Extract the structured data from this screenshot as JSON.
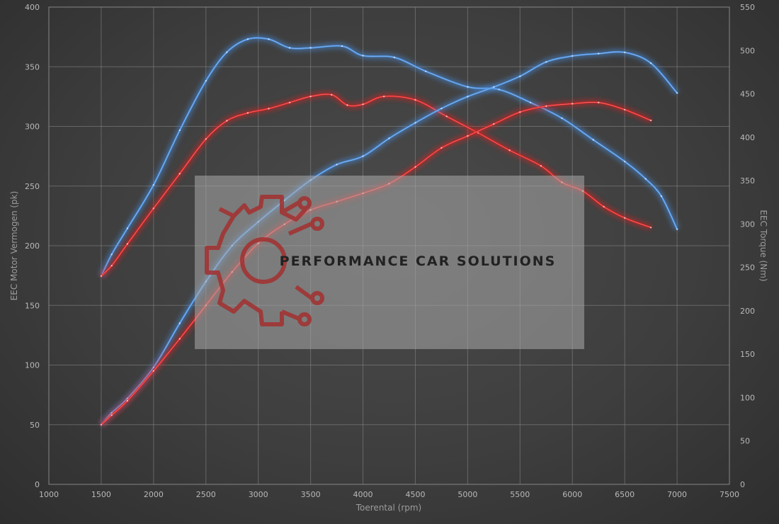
{
  "chart_data": {
    "type": "line",
    "xlabel": "Toerental (rpm)",
    "ylabel": "EEC Motor Vermogen (pk)",
    "y2label": "EEC Torque (Nm)",
    "xlim": [
      1000,
      7500
    ],
    "ylim": [
      0,
      400
    ],
    "y2lim": [
      0,
      550
    ],
    "x_ticks": [
      1000,
      1500,
      2000,
      2500,
      3000,
      3500,
      4000,
      4500,
      5000,
      5500,
      6000,
      6500,
      7000,
      7500
    ],
    "y_ticks": [
      0,
      50,
      100,
      150,
      200,
      250,
      300,
      350,
      400
    ],
    "y2_ticks": [
      0,
      50,
      100,
      150,
      200,
      250,
      300,
      350,
      400,
      450,
      500,
      550
    ],
    "grid": true,
    "series": [
      {
        "axis": "right",
        "color": "#4a90e2",
        "x": [
          1500,
          1600,
          1750,
          2000,
          2250,
          2500,
          2700,
          2900,
          3100,
          3300,
          3500,
          3800,
          4000,
          4300,
          4600,
          5000,
          5300,
          5600,
          5900,
          6200,
          6500,
          6700,
          6850,
          7000
        ],
        "values": [
          240,
          265,
          295,
          345,
          408,
          465,
          498,
          513,
          513,
          503,
          503,
          505,
          494,
          492,
          476,
          458,
          455,
          440,
          422,
          397,
          372,
          352,
          332,
          294
        ]
      },
      {
        "axis": "right",
        "color": "#e02424",
        "x": [
          1500,
          1600,
          1750,
          2000,
          2250,
          2500,
          2700,
          2900,
          3100,
          3300,
          3500,
          3700,
          3850,
          4000,
          4200,
          4500,
          4800,
          5100,
          5400,
          5700,
          5900,
          6100,
          6300,
          6500,
          6750
        ],
        "values": [
          240,
          252,
          277,
          318,
          358,
          398,
          419,
          428,
          433,
          440,
          447,
          449,
          437,
          438,
          447,
          443,
          424,
          405,
          385,
          367,
          348,
          338,
          320,
          307,
          296
        ]
      },
      {
        "axis": "left",
        "color": "#4a90e2",
        "x": [
          1500,
          1600,
          1750,
          2000,
          2250,
          2500,
          2750,
          3000,
          3250,
          3500,
          3750,
          4000,
          4250,
          4500,
          4750,
          5000,
          5250,
          5500,
          5750,
          6000,
          6250,
          6500,
          6750,
          7000
        ],
        "values": [
          50,
          60,
          72,
          98,
          135,
          170,
          200,
          220,
          238,
          255,
          268,
          275,
          290,
          303,
          315,
          325,
          333,
          342,
          354,
          359,
          361,
          362,
          353,
          328
        ]
      },
      {
        "axis": "left",
        "color": "#e02424",
        "x": [
          1500,
          1600,
          1750,
          2000,
          2250,
          2500,
          2750,
          3000,
          3250,
          3500,
          3750,
          4000,
          4250,
          4500,
          4750,
          5000,
          5250,
          5500,
          5750,
          6000,
          6250,
          6500,
          6750
        ],
        "values": [
          50,
          58,
          70,
          95,
          122,
          150,
          178,
          202,
          218,
          230,
          237,
          244,
          252,
          266,
          282,
          292,
          302,
          312,
          317,
          319,
          320,
          314,
          305
        ]
      }
    ]
  },
  "watermark": {
    "brand": "PERFORMANCE CAR SOLUTIONS",
    "logo_color": "#a33030",
    "panel_color": "#a9a9a9"
  }
}
